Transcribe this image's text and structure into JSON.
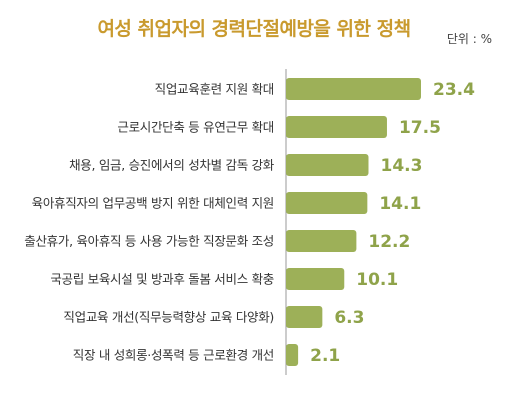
{
  "chart_data": {
    "type": "bar",
    "orientation": "horizontal",
    "title": "여성 취업자의 경력단절예방을 위한 정책",
    "unit_label": "단위 : %",
    "categories": [
      "직업교육훈련 지원 확대",
      "근로시간단축 등 유연근무 확대",
      "채용, 임금, 승진에서의 성차별 감독 강화",
      "육아휴직자의 업무공백 방지 위한 대체인력 지원",
      "출산휴가, 육아휴직 등 사용 가능한 직장문화 조성",
      "국공립 보육시설 및 방과후 돌봄 서비스 확충",
      "직업교육 개선(직무능력향상 교육 다양화)",
      "직장 내 성희롱·성폭력 등 근로환경 개선"
    ],
    "values": [
      23.4,
      17.5,
      14.3,
      14.1,
      12.2,
      10.1,
      6.3,
      2.1
    ],
    "value_labels": [
      "23.4",
      "17.5",
      "14.3",
      "14.1",
      "12.2",
      "10.1",
      "6.3",
      "2.1"
    ],
    "xlim": [
      0,
      23.4
    ],
    "colors": {
      "bar": "#9db058",
      "value_text": "#8fa34a",
      "title": "#c99a2e",
      "axis_line": "#9a9a9a"
    }
  }
}
